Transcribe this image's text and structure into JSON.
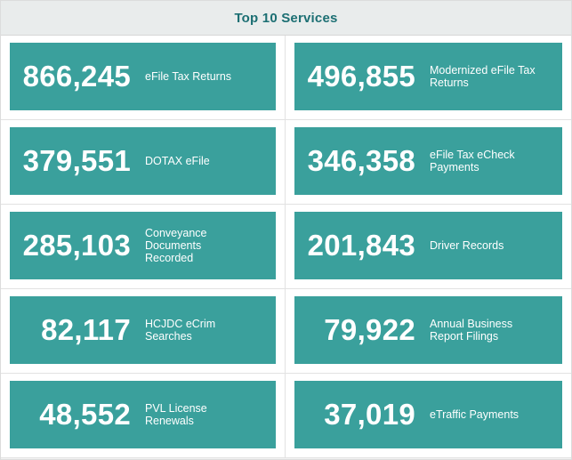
{
  "header": {
    "title": "Top 10 Services"
  },
  "services": [
    {
      "value": "866,245",
      "label": "eFile Tax Returns"
    },
    {
      "value": "496,855",
      "label": "Modernized eFile Tax Returns"
    },
    {
      "value": "379,551",
      "label": "DOTAX eFile"
    },
    {
      "value": "346,358",
      "label": "eFile Tax eCheck Payments"
    },
    {
      "value": "285,103",
      "label": "Conveyance Documents Recorded"
    },
    {
      "value": "201,843",
      "label": "Driver Records"
    },
    {
      "value": "82,117",
      "label": "HCJDC eCrim Searches"
    },
    {
      "value": "79,922",
      "label": "Annual Business Report Filings"
    },
    {
      "value": "48,552",
      "label": "PVL License Renewals"
    },
    {
      "value": "37,019",
      "label": "eTraffic Payments"
    }
  ],
  "colors": {
    "tile": "#3aa09c",
    "header_text": "#1c6f73",
    "header_bg": "#e9ecec"
  }
}
